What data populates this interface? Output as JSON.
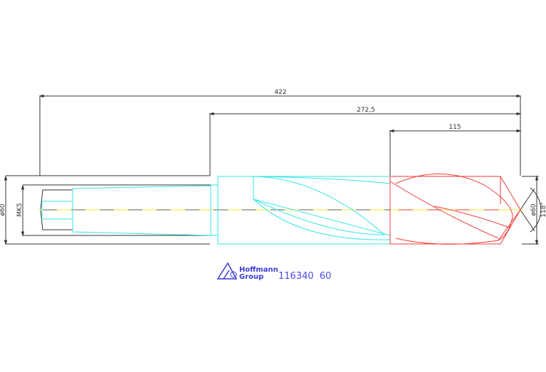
{
  "drawing": {
    "dimensions": {
      "overall_length": "422",
      "flute_length": "272,5",
      "tip_length": "115",
      "shank_diameter": "ø60",
      "taper": "MK5",
      "tip_diameter": "ø60",
      "point_angle": "118°"
    },
    "logo": {
      "line1": "Hoffmann",
      "line2": "Group"
    },
    "article_number": "116340  60",
    "colors": {
      "lines": "#333333",
      "body": "#33e6e6",
      "tip": "#f03a3a",
      "centerline": "#f5f07a",
      "text": "#4a4ae8"
    }
  }
}
